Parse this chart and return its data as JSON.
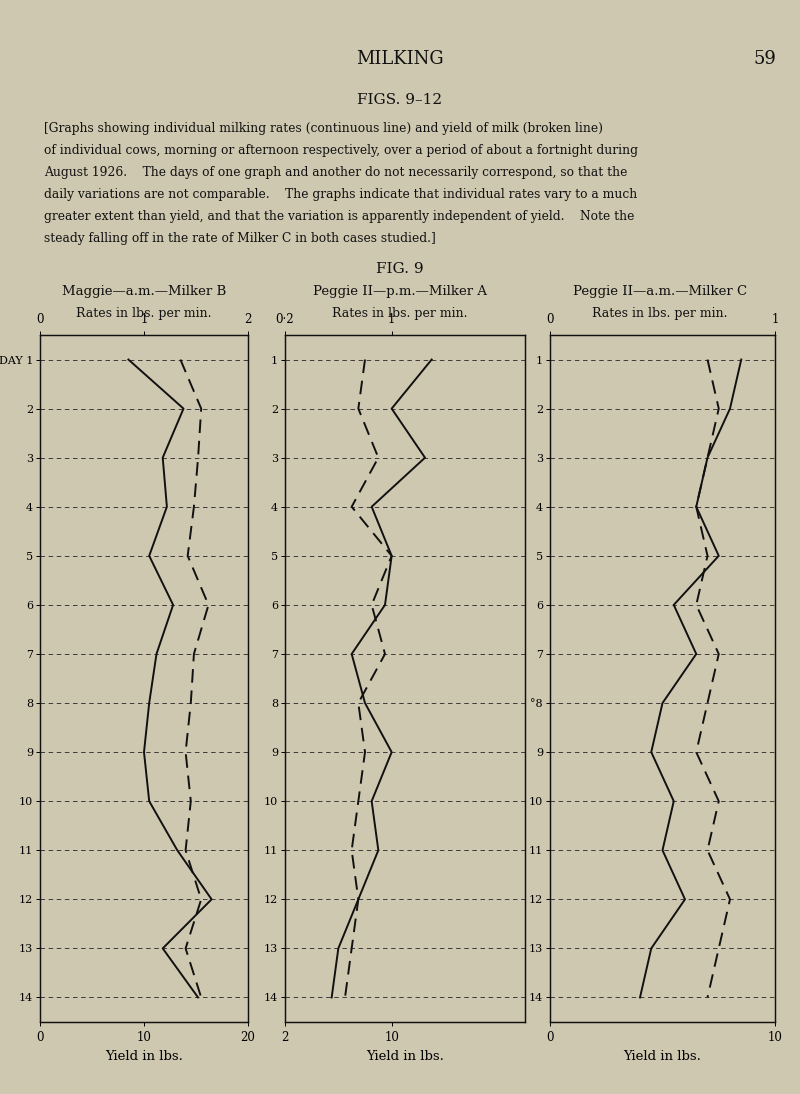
{
  "page_title": "MILKING",
  "page_number": "59",
  "fig_section_title": "FIGS. 9–12",
  "fig_title": "FIG. 9",
  "description_lines": [
    "[Graphs showing individual milking rates (continuous line) and yield of milk (broken line)",
    "of individual cows, morning or afternoon respectively, over a period of about a fortnight during",
    "August 1926.    The days of one graph and another do not necessarily correspond, so that the",
    "daily variations are not comparable.    The graphs indicate that individual rates vary to a much",
    "greater extent than yield, and that the variation is apparently independent of yield.    Note the",
    "steady falling off in the rate of Milker C in both cases studied.]"
  ],
  "background_color": "#cfc8b0",
  "text_color": "#111111",
  "graphs": [
    {
      "title_line1": "Maggie—a.m.—Milker B",
      "title_line2": "Rates in lbs. per min.",
      "rate_xlim": [
        0,
        2
      ],
      "rate_xticks": [
        0,
        1,
        2
      ],
      "rate_xtick_labels": [
        "0",
        "1",
        "2"
      ],
      "yield_xlim": [
        0,
        20
      ],
      "yield_xticks": [
        0,
        10,
        20
      ],
      "yield_xtick_labels": [
        "0",
        "10",
        "20"
      ],
      "xlabel": "Yield in lbs.",
      "days": [
        1,
        2,
        3,
        4,
        5,
        6,
        7,
        8,
        9,
        10,
        11,
        12,
        13,
        14
      ],
      "rate": [
        0.85,
        1.38,
        1.18,
        1.22,
        1.05,
        1.28,
        1.12,
        1.05,
        1.0,
        1.05,
        1.32,
        1.65,
        1.18,
        1.52
      ],
      "yield": [
        13.5,
        15.5,
        15.2,
        14.8,
        14.2,
        16.2,
        14.8,
        14.5,
        14.0,
        14.5,
        14.0,
        15.5,
        14.0,
        15.5
      ],
      "day_labels": [
        "DAY 1",
        "2",
        "3",
        "4",
        "5",
        "6",
        "7",
        "8",
        "9",
        "10",
        "11",
        "12",
        "13",
        "14"
      ]
    },
    {
      "title_line1": "Peggie II—p.m.—Milker A",
      "title_line2": "Rates in lbs. per min.",
      "rate_xlim": [
        0.2,
        2.0
      ],
      "rate_xticks": [
        0.2,
        1.0
      ],
      "rate_xtick_labels": [
        "0·2",
        "1"
      ],
      "yield_xlim": [
        2,
        20
      ],
      "yield_xticks": [
        2,
        10
      ],
      "yield_xtick_labels": [
        "2",
        "10"
      ],
      "xlabel": "Yield in lbs.",
      "days": [
        1,
        2,
        3,
        4,
        5,
        6,
        7,
        8,
        9,
        10,
        11,
        12,
        13,
        14
      ],
      "rate": [
        1.3,
        1.0,
        1.25,
        0.85,
        1.0,
        0.95,
        0.7,
        0.8,
        1.0,
        0.85,
        0.9,
        0.75,
        0.6,
        0.55
      ],
      "yield": [
        8.0,
        7.5,
        9.0,
        7.0,
        10.0,
        8.5,
        9.5,
        7.5,
        8.0,
        7.5,
        7.0,
        7.5,
        7.0,
        6.5
      ],
      "day_labels": [
        "1",
        "2",
        "3",
        "4",
        "5",
        "6",
        "7",
        "8",
        "9",
        "10",
        "11",
        "12",
        "13",
        "14"
      ]
    },
    {
      "title_line1": "Peggie II—a.m.—Milker C",
      "title_line2": "Rates in lbs. per min.",
      "rate_xlim": [
        0,
        1.0
      ],
      "rate_xticks": [
        0,
        1.0
      ],
      "rate_xtick_labels": [
        "0",
        "1"
      ],
      "yield_xlim": [
        0,
        10
      ],
      "yield_xticks": [
        0,
        10
      ],
      "yield_xtick_labels": [
        "0",
        "10"
      ],
      "xlabel": "Yield in lbs.",
      "days": [
        1,
        2,
        3,
        4,
        5,
        6,
        7,
        8,
        9,
        10,
        11,
        12,
        13,
        14
      ],
      "rate": [
        0.85,
        0.8,
        0.7,
        0.65,
        0.75,
        0.55,
        0.65,
        0.5,
        0.45,
        0.55,
        0.5,
        0.6,
        0.45,
        0.4
      ],
      "yield": [
        7.0,
        7.5,
        7.0,
        6.5,
        7.0,
        6.5,
        7.5,
        7.0,
        6.5,
        7.5,
        7.0,
        8.0,
        7.5,
        7.0
      ],
      "day_labels": [
        "1",
        "2",
        "3",
        "4",
        "5",
        "6",
        "7",
        "°8",
        "9",
        "10",
        "11",
        "12",
        "13",
        "14"
      ]
    }
  ]
}
